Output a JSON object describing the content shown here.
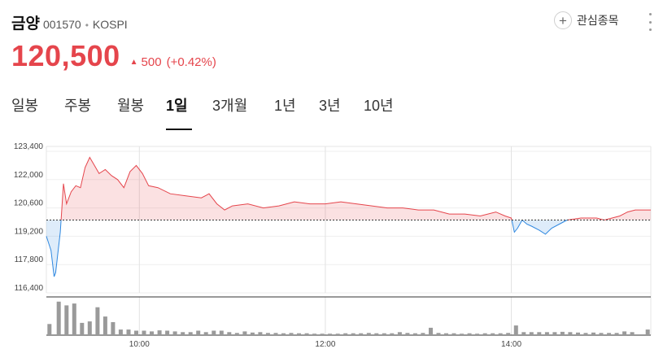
{
  "stock": {
    "name": "금양",
    "code": "001570",
    "separator": "•",
    "market": "KOSPI"
  },
  "favorite": {
    "label": "관심종목",
    "icon": "plus-circle-icon"
  },
  "more_menu": {
    "icon": "more-vertical-icon"
  },
  "quote": {
    "price": "120,500",
    "change_arrow": "▲",
    "change": "500",
    "change_pct": "(+0.42%)",
    "color_up": "#e5454c"
  },
  "tabs": [
    {
      "label": "일봉",
      "active": false
    },
    {
      "label": "주봉",
      "active": false
    },
    {
      "label": "월봉",
      "active": false
    },
    {
      "label": "1일",
      "active": true
    },
    {
      "label": "3개월",
      "active": false
    },
    {
      "label": "1년",
      "active": false
    },
    {
      "label": "3년",
      "active": false
    },
    {
      "label": "10년",
      "active": false
    }
  ],
  "chart_data": {
    "type": "area",
    "baseline": 120000,
    "ylim": [
      116400,
      123400
    ],
    "yticks": [
      {
        "value": 123400,
        "label": "123,400"
      },
      {
        "value": 122000,
        "label": "122,000"
      },
      {
        "value": 120600,
        "label": "120,600"
      },
      {
        "value": 119200,
        "label": "119,200"
      },
      {
        "value": 117800,
        "label": "117,800"
      },
      {
        "value": 116400,
        "label": "116,400"
      }
    ],
    "xlim": [
      "09:00",
      "15:30"
    ],
    "xticks": [
      "10:00",
      "12:00",
      "14:00"
    ],
    "grid": true,
    "up_color": "#e5454c",
    "down_color": "#2f88e0",
    "price_series": [
      [
        "09:00",
        119200
      ],
      [
        "09:03",
        118500
      ],
      [
        "09:05",
        117200
      ],
      [
        "09:06",
        117400
      ],
      [
        "09:09",
        119400
      ],
      [
        "09:11",
        121800
      ],
      [
        "09:13",
        120800
      ],
      [
        "09:16",
        121400
      ],
      [
        "09:19",
        121700
      ],
      [
        "09:22",
        121600
      ],
      [
        "09:25",
        122600
      ],
      [
        "09:28",
        123100
      ],
      [
        "09:31",
        122700
      ],
      [
        "09:34",
        122300
      ],
      [
        "09:38",
        122500
      ],
      [
        "09:42",
        122200
      ],
      [
        "09:46",
        122000
      ],
      [
        "09:50",
        121600
      ],
      [
        "09:54",
        122400
      ],
      [
        "09:58",
        122700
      ],
      [
        "10:02",
        122300
      ],
      [
        "10:06",
        121700
      ],
      [
        "10:12",
        121600
      ],
      [
        "10:20",
        121300
      ],
      [
        "10:30",
        121200
      ],
      [
        "10:40",
        121100
      ],
      [
        "10:45",
        121300
      ],
      [
        "10:50",
        120800
      ],
      [
        "10:55",
        120500
      ],
      [
        "11:00",
        120700
      ],
      [
        "11:10",
        120800
      ],
      [
        "11:20",
        120600
      ],
      [
        "11:30",
        120700
      ],
      [
        "11:40",
        120900
      ],
      [
        "11:50",
        120800
      ],
      [
        "12:00",
        120800
      ],
      [
        "12:10",
        120900
      ],
      [
        "12:20",
        120800
      ],
      [
        "12:30",
        120700
      ],
      [
        "12:40",
        120600
      ],
      [
        "12:50",
        120600
      ],
      [
        "13:00",
        120500
      ],
      [
        "13:10",
        120500
      ],
      [
        "13:20",
        120300
      ],
      [
        "13:30",
        120300
      ],
      [
        "13:40",
        120200
      ],
      [
        "13:50",
        120400
      ],
      [
        "13:56",
        120200
      ],
      [
        "14:00",
        120100
      ],
      [
        "14:02",
        119400
      ],
      [
        "14:04",
        119600
      ],
      [
        "14:07",
        120000
      ],
      [
        "14:10",
        119800
      ],
      [
        "14:13",
        119700
      ],
      [
        "14:18",
        119500
      ],
      [
        "14:22",
        119300
      ],
      [
        "14:26",
        119600
      ],
      [
        "14:31",
        119800
      ],
      [
        "14:36",
        120000
      ],
      [
        "14:45",
        120100
      ],
      [
        "14:55",
        120100
      ],
      [
        "15:00",
        120000
      ],
      [
        "15:05",
        120100
      ],
      [
        "15:10",
        120200
      ],
      [
        "15:15",
        120400
      ],
      [
        "15:20",
        120500
      ],
      [
        "15:30",
        120500
      ]
    ],
    "volume_series": [
      [
        "09:02",
        3.0
      ],
      [
        "09:08",
        9.0
      ],
      [
        "09:13",
        8.0
      ],
      [
        "09:18",
        8.5
      ],
      [
        "09:23",
        3.3
      ],
      [
        "09:28",
        3.7
      ],
      [
        "09:33",
        7.5
      ],
      [
        "09:38",
        5.0
      ],
      [
        "09:43",
        3.5
      ],
      [
        "09:48",
        1.5
      ],
      [
        "09:53",
        1.5
      ],
      [
        "09:58",
        1.2
      ],
      [
        "10:03",
        1.2
      ],
      [
        "10:08",
        1.0
      ],
      [
        "10:13",
        1.3
      ],
      [
        "10:18",
        1.2
      ],
      [
        "10:23",
        1.0
      ],
      [
        "10:28",
        0.8
      ],
      [
        "10:33",
        0.8
      ],
      [
        "10:38",
        1.2
      ],
      [
        "10:43",
        0.8
      ],
      [
        "10:48",
        1.2
      ],
      [
        "10:53",
        1.2
      ],
      [
        "10:58",
        0.8
      ],
      [
        "11:03",
        0.6
      ],
      [
        "11:08",
        1.0
      ],
      [
        "11:13",
        0.7
      ],
      [
        "11:18",
        0.8
      ],
      [
        "11:23",
        0.6
      ],
      [
        "11:28",
        0.6
      ],
      [
        "11:33",
        0.5
      ],
      [
        "11:38",
        0.6
      ],
      [
        "11:43",
        0.5
      ],
      [
        "11:48",
        0.5
      ],
      [
        "11:53",
        0.4
      ],
      [
        "11:58",
        0.4
      ],
      [
        "12:03",
        0.4
      ],
      [
        "12:08",
        0.4
      ],
      [
        "12:13",
        0.5
      ],
      [
        "12:18",
        0.5
      ],
      [
        "12:23",
        0.5
      ],
      [
        "12:28",
        0.6
      ],
      [
        "12:33",
        0.5
      ],
      [
        "12:38",
        0.5
      ],
      [
        "12:43",
        0.5
      ],
      [
        "12:48",
        0.8
      ],
      [
        "12:53",
        0.6
      ],
      [
        "12:58",
        0.5
      ],
      [
        "13:03",
        0.6
      ],
      [
        "13:08",
        2.0
      ],
      [
        "13:13",
        0.6
      ],
      [
        "13:18",
        0.5
      ],
      [
        "13:23",
        0.5
      ],
      [
        "13:28",
        0.4
      ],
      [
        "13:33",
        0.5
      ],
      [
        "13:38",
        0.4
      ],
      [
        "13:43",
        0.5
      ],
      [
        "13:48",
        0.5
      ],
      [
        "13:53",
        0.5
      ],
      [
        "13:58",
        0.6
      ],
      [
        "14:03",
        2.6
      ],
      [
        "14:08",
        0.8
      ],
      [
        "14:13",
        0.8
      ],
      [
        "14:18",
        0.8
      ],
      [
        "14:23",
        0.8
      ],
      [
        "14:28",
        0.8
      ],
      [
        "14:33",
        0.9
      ],
      [
        "14:38",
        0.8
      ],
      [
        "14:43",
        0.7
      ],
      [
        "14:48",
        0.6
      ],
      [
        "14:53",
        0.7
      ],
      [
        "14:58",
        0.6
      ],
      [
        "15:03",
        0.6
      ],
      [
        "15:08",
        0.6
      ],
      [
        "15:13",
        1.0
      ],
      [
        "15:18",
        0.8
      ],
      [
        "15:28",
        1.5
      ]
    ]
  }
}
